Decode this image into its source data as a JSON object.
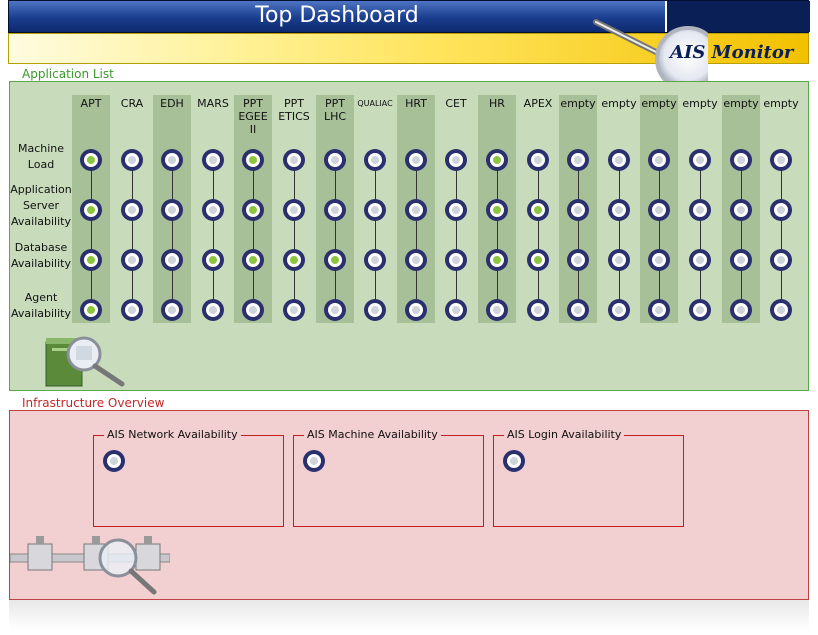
{
  "header": {
    "title": "Top Dashboard",
    "logo_text": "AIS",
    "logo_text_2": "Monitor",
    "accent": "#1a3d8e",
    "band_color": "#ffe35a"
  },
  "app_section": {
    "label": "Application List",
    "columns": [
      "APT",
      "CRA",
      "EDH",
      "MARS",
      "PPT EGEE II",
      "PPT ETICS",
      "PPT LHC",
      "QUALIAC",
      "HRT",
      "CET",
      "HR",
      "APEX",
      "empty",
      "empty",
      "empty",
      "empty",
      "empty",
      "empty"
    ],
    "rows": [
      "Machine Load",
      "Application Server Availability",
      "Database Availability",
      "Agent Availability"
    ],
    "status": [
      [
        1,
        0,
        0,
        0,
        1,
        0,
        0,
        0,
        0,
        0,
        1,
        0,
        0,
        0,
        0,
        0,
        0,
        0
      ],
      [
        1,
        0,
        0,
        0,
        1,
        0,
        0,
        0,
        0,
        0,
        1,
        1,
        0,
        0,
        0,
        0,
        0,
        0
      ],
      [
        1,
        0,
        0,
        1,
        1,
        1,
        1,
        0,
        0,
        0,
        1,
        1,
        0,
        0,
        0,
        0,
        0,
        0
      ],
      [
        1,
        0,
        0,
        0,
        0,
        0,
        0,
        0,
        0,
        0,
        0,
        0,
        0,
        0,
        0,
        0,
        0,
        0
      ]
    ],
    "status_colors": {
      "ok": "#8cc63f",
      "unknown": "#cfd3da"
    }
  },
  "infra_section": {
    "label": "Infrastructure Overview",
    "boxes": [
      {
        "title": "AIS Network Availability"
      },
      {
        "title": "AIS Machine Availability"
      },
      {
        "title": "AIS Login Availability"
      }
    ]
  }
}
